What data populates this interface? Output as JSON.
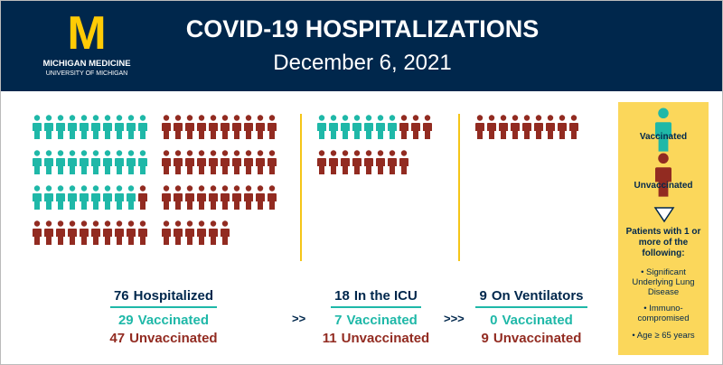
{
  "header": {
    "logo": "M",
    "org": "MICHIGAN MEDICINE",
    "org_sub": "UNIVERSITY OF MICHIGAN",
    "title": "COVID-19 HOSPITALIZATIONS",
    "date": "December 6, 2021"
  },
  "panels": [
    {
      "total": 76,
      "total_label": "Hospitalized",
      "vaccinated": 29,
      "vaccinated_label": "Vaccinated",
      "unvaccinated": 47,
      "unvaccinated_label": "Unvaccinated"
    },
    {
      "total": 18,
      "total_label": "In the ICU",
      "vaccinated": 7,
      "vaccinated_label": "Vaccinated",
      "unvaccinated": 11,
      "unvaccinated_label": "Unvaccinated"
    },
    {
      "total": 9,
      "total_label": "On Ventilators",
      "vaccinated": 0,
      "vaccinated_label": "Vaccinated",
      "unvaccinated": 9,
      "unvaccinated_label": "Unvaccinated"
    }
  ],
  "arrows": [
    ">>",
    ">>>"
  ],
  "legend": {
    "vaccinated": "Vaccinated",
    "unvaccinated": "Unvaccinated",
    "condition_title": "Patients with 1 or more of the following:",
    "conditions": [
      "• Significant Underlying Lung Disease",
      "• Immuno-compromised",
      "• Age ≥ 65 years"
    ]
  }
}
